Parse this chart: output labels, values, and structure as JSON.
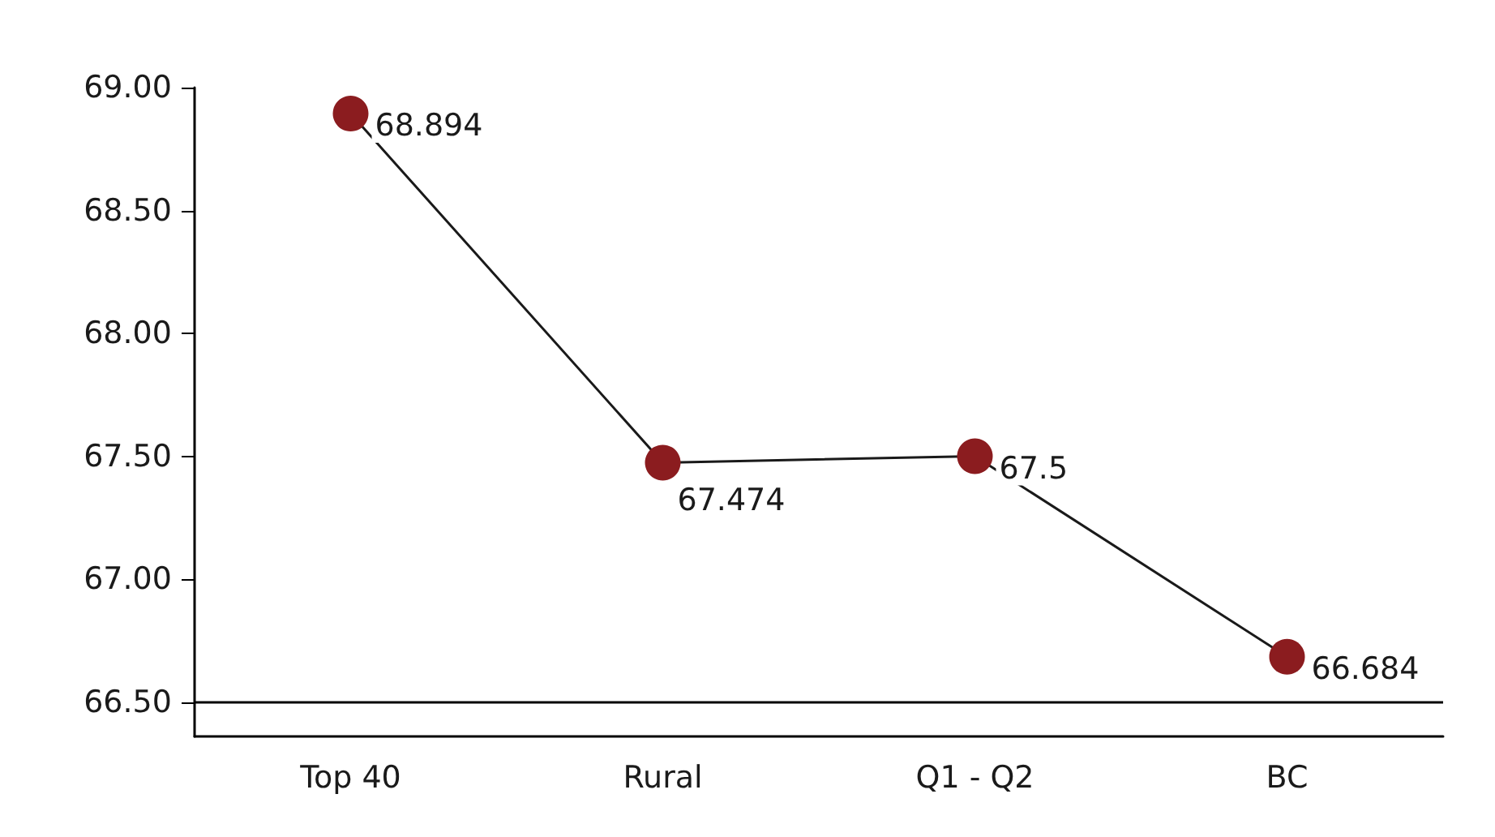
{
  "chart_data": {
    "type": "line",
    "categories": [
      "Top 40",
      "Rural",
      "Q1 - Q2",
      "BC"
    ],
    "series": [
      {
        "color": "#8b1c1f",
        "values": [
          68.894,
          67.474,
          67.5,
          66.684
        ]
      }
    ],
    "ylim": [
      66.36,
      69.0
    ],
    "yticks": [
      {
        "value": 66.5,
        "label": "66.50"
      },
      {
        "value": 67,
        "label": "67.00"
      },
      {
        "value": 67.5,
        "label": "67.50"
      },
      {
        "value": 68,
        "label": "68.00"
      },
      {
        "value": 68.5,
        "label": "68.50"
      },
      {
        "value": 69,
        "label": "69.00"
      }
    ],
    "ref_lines": [
      {
        "axis": "y",
        "value": 66.5,
        "color": "#000000"
      }
    ],
    "data_labels": true,
    "marker": "circle",
    "line_style": "solid",
    "grid": false
  }
}
